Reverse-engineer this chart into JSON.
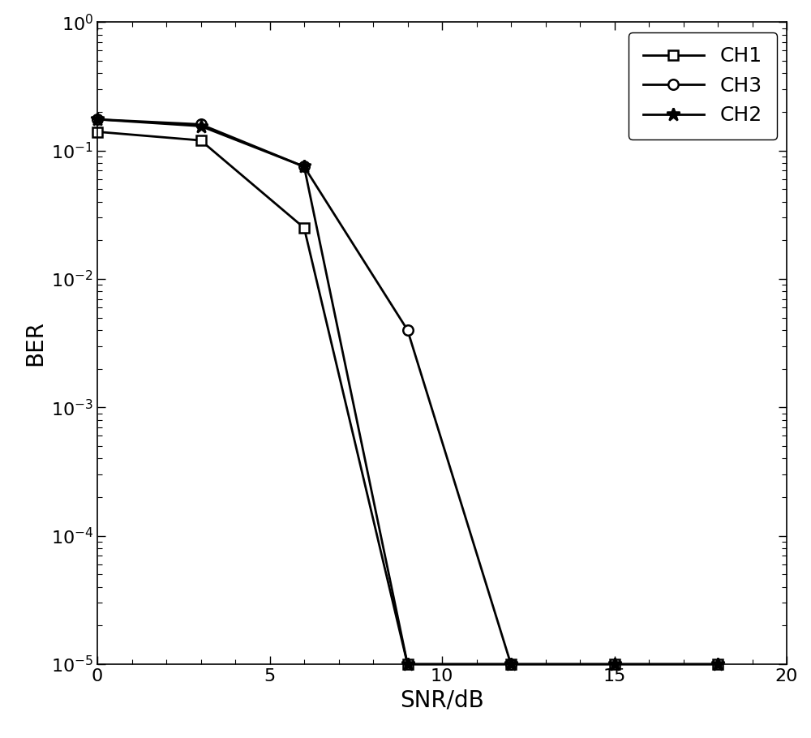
{
  "CH1": {
    "x": [
      0,
      3,
      6,
      9,
      12,
      15,
      18
    ],
    "y": [
      0.14,
      0.12,
      0.025,
      1e-05,
      1e-05,
      1e-05,
      1e-05
    ],
    "marker": "s",
    "label": "CH1",
    "markersize": 9,
    "markerfacecolor": "white",
    "markeredgecolor": "black",
    "linewidth": 2.0
  },
  "CH3": {
    "x": [
      0,
      3,
      6,
      9,
      12
    ],
    "y": [
      0.175,
      0.16,
      0.075,
      0.004,
      1e-05
    ],
    "marker": "o",
    "label": "CH3",
    "markersize": 9,
    "markerfacecolor": "white",
    "markeredgecolor": "black",
    "linewidth": 2.0
  },
  "CH2": {
    "x": [
      0,
      3,
      6,
      9,
      12,
      15,
      18
    ],
    "y": [
      0.175,
      0.155,
      0.075,
      1e-05,
      1e-05,
      1e-05,
      1e-05
    ],
    "marker": "*",
    "label": "CH2",
    "markersize": 12,
    "markerfacecolor": "black",
    "markeredgecolor": "black",
    "linewidth": 2.0
  },
  "xlabel": "SNR/dB",
  "ylabel": "BER",
  "xlim": [
    0,
    20
  ],
  "ylim": [
    1e-05,
    1.0
  ],
  "xticks": [
    0,
    5,
    10,
    15,
    20
  ],
  "yticks": [
    1e-05,
    0.0001,
    0.001,
    0.01,
    0.1,
    1.0
  ],
  "background_color": "#ffffff",
  "line_color": "black",
  "legend_fontsize": 18,
  "axis_label_fontsize": 20,
  "tick_fontsize": 16
}
